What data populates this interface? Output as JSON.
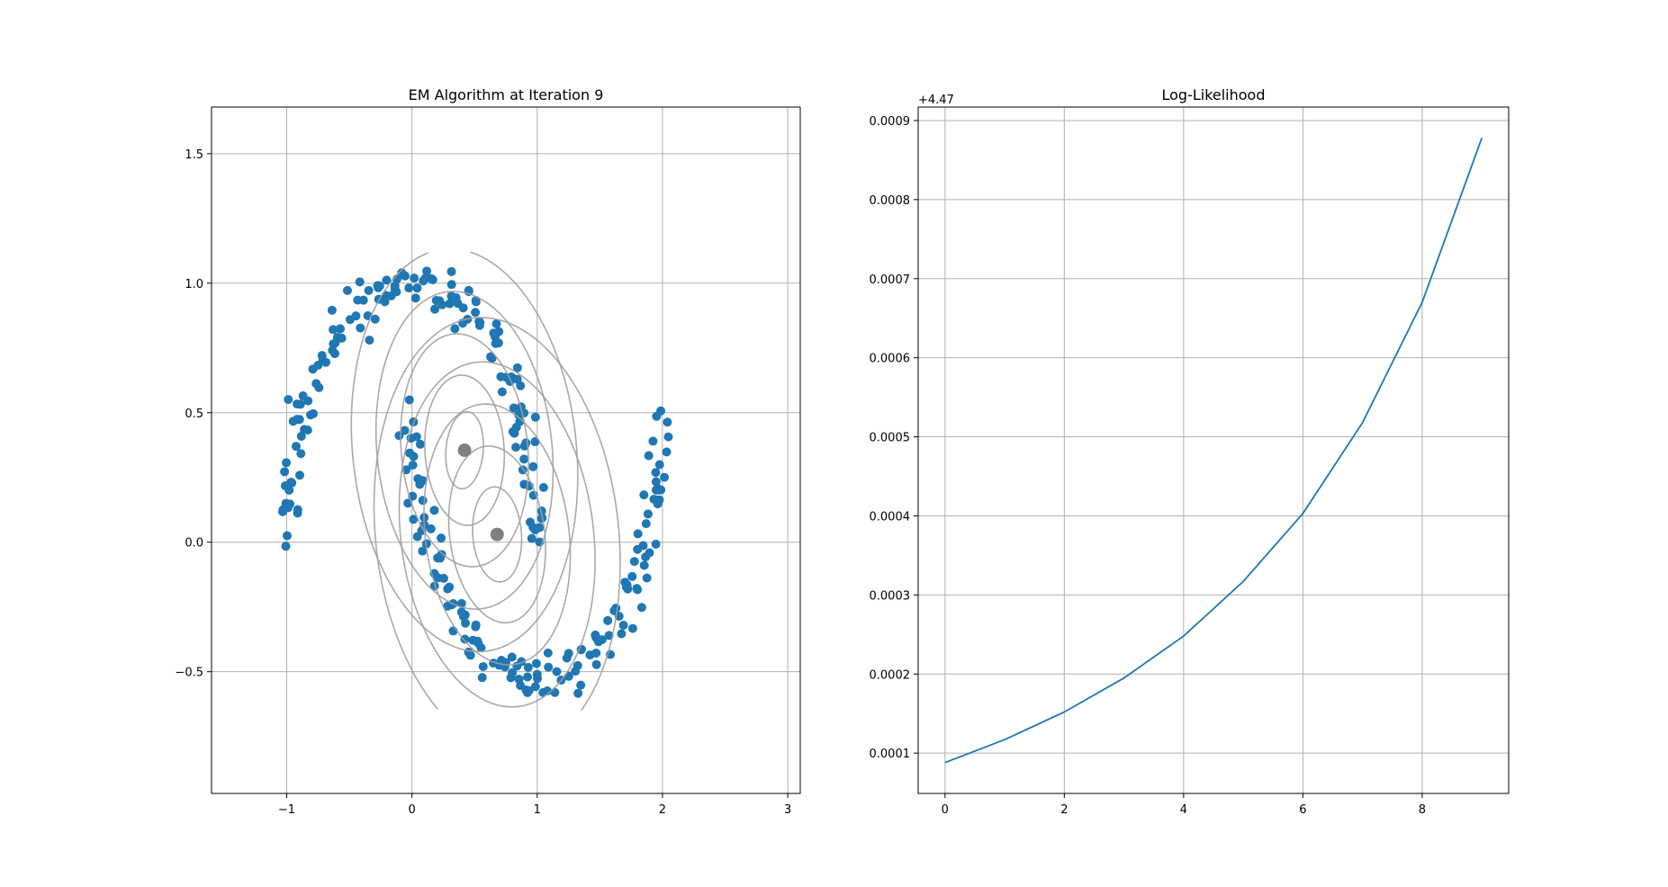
{
  "chart_data": [
    {
      "type": "scatter",
      "title": "EM Algorithm at Iteration 9",
      "xlabel": "",
      "ylabel": "",
      "xlim": [
        -1.6,
        3.1
      ],
      "ylim": [
        -0.97,
        1.68
      ],
      "x_ticks": [
        -1,
        0,
        1,
        2,
        3
      ],
      "y_ticks": [
        -0.5,
        0.0,
        0.5,
        1.0,
        1.5
      ],
      "x_tick_labels": [
        "−1",
        "0",
        "1",
        "2",
        "3"
      ],
      "y_tick_labels": [
        "−0.5",
        "0.0",
        "0.5",
        "1.0",
        "1.5"
      ],
      "grid": true,
      "point_color": "#1f77b4",
      "contour_color": "#a0a0a0",
      "means_color": "#808080",
      "dataset": "two interleaving half-moons, 300 points",
      "means": [
        {
          "x": 0.42,
          "y": 0.355
        },
        {
          "x": 0.68,
          "y": 0.03
        }
      ]
    },
    {
      "type": "line",
      "title": "Log-Likelihood",
      "xlabel": "",
      "ylabel": "",
      "offset_label": "+4.47",
      "x": [
        0,
        1,
        2,
        3,
        4,
        5,
        6,
        7,
        8,
        9
      ],
      "y": [
        8.8e-05,
        0.000117,
        0.000152,
        0.000195,
        0.000248,
        0.000317,
        0.000403,
        0.000518,
        0.00067,
        0.000878
      ],
      "xlim": [
        -0.45,
        9.45
      ],
      "ylim": [
        4.9e-05,
        0.000917
      ],
      "x_ticks": [
        0,
        2,
        4,
        6,
        8
      ],
      "y_ticks": [
        0.0001,
        0.0002,
        0.0003,
        0.0004,
        0.0005,
        0.0006,
        0.0007,
        0.0008,
        0.0009
      ],
      "x_tick_labels": [
        "0",
        "2",
        "4",
        "6",
        "8"
      ],
      "y_tick_labels": [
        "0.0001",
        "0.0002",
        "0.0003",
        "0.0004",
        "0.0005",
        "0.0006",
        "0.0007",
        "0.0008",
        "0.0009"
      ],
      "grid": true,
      "line_color": "#1f77b4"
    }
  ]
}
